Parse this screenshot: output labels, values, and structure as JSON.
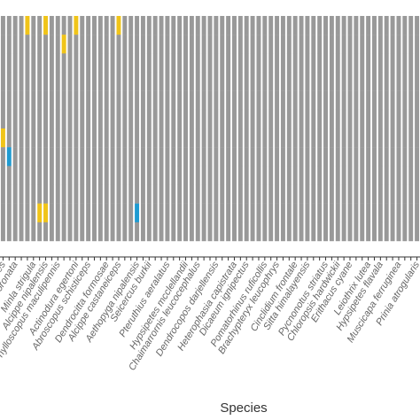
{
  "chart_data": {
    "type": "bar",
    "xlabel": "Species",
    "ylabel": "",
    "title": "",
    "colors": {
      "G": "#999999",
      "B": "#1f9bd1",
      "Y": "#f0c419"
    },
    "categories": [
      "Nucifraga caryocatactes",
      "Tesia castaneocoronata",
      "Minla strigula",
      "Alcippe nipalensis",
      "Phylloscopus maculipennis",
      "Actinodura egertoni",
      "Abroscopus schisticeps",
      "Dendrocitta formosae",
      "Alcippe castaneiceps",
      "Aethopyga nipalensis",
      "Seicercus burkii",
      "Pteruthius aeralatus",
      "Hypsipetes mcclellandii",
      "Chaimarrornis leucocephalus",
      "Dendrocopos darjellensis",
      "Heterophasia capistrata",
      "Dicaeum ignipectus",
      "Pomatorhinus ruficollis",
      "Brachypteryx leucophrys",
      "Cinclidium frontale",
      "Sitta himalayensis",
      "Pycnonotus striatus",
      "Chloropsis hardwickii",
      "Erithacus cyane",
      "Leiothrix lutea",
      "Hypsipetes flavala",
      "Muscicapa ferruginea",
      "Prinia atrogularis"
    ],
    "bars": [
      {
        "species": "Nucifraga caryocatactes",
        "segments": "GGGGGGYGGGGG"
      },
      {
        "species": "",
        "segments": "GGGGGGGBGGGG"
      },
      {
        "species": "Tesia castaneocoronata",
        "segments": "GGGGGGGGGGGG"
      },
      {
        "species": "",
        "segments": "GGGGGGGGGGGG"
      },
      {
        "species": "",
        "segments": "YGGGGGGGGGGG"
      },
      {
        "species": "Minla strigula",
        "segments": "GGGGGGGGGGGG"
      },
      {
        "species": "",
        "segments": "GGGGGGGGGGYG"
      },
      {
        "species": "Alcippe nipalensis",
        "segments": "YGGGGGGGGGYG"
      },
      {
        "species": "",
        "segments": "GGGGGGGGGGGG"
      },
      {
        "species": "Phylloscopus maculipennis",
        "segments": "GGGGGGGGGGGG"
      },
      {
        "species": "",
        "segments": "GYGGGGGGGGGG"
      },
      {
        "species": "",
        "segments": "GGGGGGGGGGGG"
      },
      {
        "species": "Actinodura egertoni",
        "segments": "YGGGGGGGGGGG"
      },
      {
        "species": "",
        "segments": "GGGGGGGGGGGG"
      },
      {
        "species": "Abroscopus schisticeps",
        "segments": "GGGGGGGGGGGG"
      },
      {
        "species": "",
        "segments": "GGGGGGGGGGGG"
      },
      {
        "species": "",
        "segments": "GGGGGGGGGGGG"
      },
      {
        "species": "Dendrocitta formosae",
        "segments": "GGGGGGGGGGGG"
      },
      {
        "species": "",
        "segments": "GGGGGGGGGGGG"
      },
      {
        "species": "Alcippe castaneiceps",
        "segments": "YGGGGGGGGGGG"
      },
      {
        "species": "",
        "segments": "GGGGGGGGGGGG"
      },
      {
        "species": "",
        "segments": "GGGGGGGGGGGG"
      },
      {
        "species": "Aethopyga nipalensis",
        "segments": "GGGGGGGGGGBG"
      },
      {
        "species": "",
        "segments": "GGGGGGGGGGGG"
      },
      {
        "species": "Seicercus burkii",
        "segments": "GGGGGGGGGGGG"
      },
      {
        "species": "",
        "segments": "GGGGGGGGGGGG"
      },
      {
        "species": "",
        "segments": "GGGGGGGGGGGG"
      },
      {
        "species": "Pteruthius aeralatus",
        "segments": "GGGGGGGGGGGG"
      },
      {
        "species": "",
        "segments": "GGGGGGGGGGGG"
      },
      {
        "species": "",
        "segments": "GGGGGGGGGGGG"
      },
      {
        "species": "Hypsipetes mcclellandii",
        "segments": "GGGGGGGGGGGG"
      },
      {
        "species": "",
        "segments": "GGGGGGGGGGGG"
      },
      {
        "species": "Chaimarrornis leucocephalus",
        "segments": "GGGGGGGGGGGG"
      },
      {
        "species": "",
        "segments": "GGGGGGGGGGGG"
      },
      {
        "species": "",
        "segments": "GGGGGGGGGGGG"
      },
      {
        "species": "Dendrocopos darjellensis",
        "segments": "GGGGGGGGGGGG"
      },
      {
        "species": "",
        "segments": "GGGGGGGGGGGG"
      },
      {
        "species": "",
        "segments": "GGGGGGGGGGGG"
      },
      {
        "species": "Heterophasia capistrata",
        "segments": "GGGGGGGGGGGG"
      },
      {
        "species": "",
        "segments": "GGGGGGGGGGGG"
      },
      {
        "species": "Dicaeum ignipectus",
        "segments": "GGGGGGGGGGGG"
      },
      {
        "species": "",
        "segments": "GGGGGGGGGGGG"
      },
      {
        "species": "",
        "segments": "GGGGGGGGGGGG"
      },
      {
        "species": "Pomatorhinus ruficollis",
        "segments": "GGGGGGGGGGGG"
      },
      {
        "species": "",
        "segments": "GGGGGGGGGGGG"
      },
      {
        "species": "Brachypteryx leucophrys",
        "segments": "GGGGGGGGGGGG"
      },
      {
        "species": "",
        "segments": "GGGGGGGGGGGG"
      },
      {
        "species": "",
        "segments": "GGGGGGGGGGGG"
      },
      {
        "species": "Cinclidium frontale",
        "segments": "GGGGGGGGGGGG"
      },
      {
        "species": "",
        "segments": "GGGGGGGGGGGG"
      },
      {
        "species": "Sitta himalayensis",
        "segments": "GGGGGGGGGGGG"
      },
      {
        "species": "",
        "segments": "GGGGGGGGGGGG"
      },
      {
        "species": "",
        "segments": "GGGGGGGGGGGG"
      },
      {
        "species": "Pycnonotus striatus",
        "segments": "GGGGGGGGGGGG"
      },
      {
        "species": "",
        "segments": "GGGGGGGGGGGG"
      },
      {
        "species": "Chloropsis hardwickii",
        "segments": "GGGGGGGGGGGG"
      },
      {
        "species": "",
        "segments": "GGGGGGGGGGGG"
      },
      {
        "species": "Erithacus cyane",
        "segments": "GGGGGGGGGGGG"
      },
      {
        "species": "",
        "segments": "GGGGGGGGGGGG"
      },
      {
        "species": "",
        "segments": "GGGGGGGGGGGG"
      },
      {
        "species": "Leiothrix lutea",
        "segments": "GGGGGGGGGGGG"
      },
      {
        "species": "",
        "segments": "GGGGGGGGGGGG"
      },
      {
        "species": "Hypsipetes flavala",
        "segments": "GGGGGGGGGGGG"
      },
      {
        "species": "",
        "segments": "GGGGGGGGGGGG"
      },
      {
        "species": "",
        "segments": "GGGGGGGGGGGG"
      },
      {
        "species": "Muscicapa ferruginea",
        "segments": "GGGGGGGGGGGG"
      },
      {
        "species": "",
        "segments": "GGGGGGGGGGGG"
      },
      {
        "species": "",
        "segments": "GGGGGGGGGGGG"
      },
      {
        "species": "Prinia atrogularis",
        "segments": "GGGGGGGGGGGG"
      }
    ]
  }
}
